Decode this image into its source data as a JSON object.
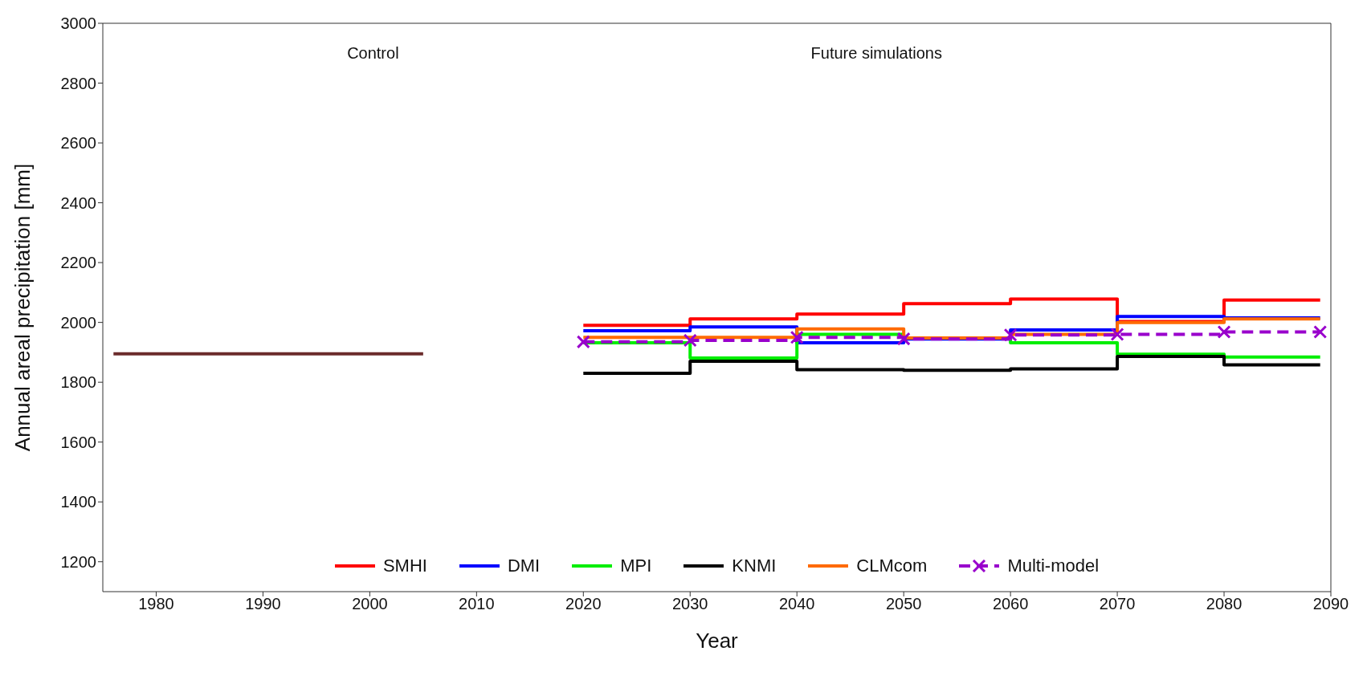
{
  "chart_data": {
    "type": "step",
    "xlabel": "Year",
    "ylabel": "Annual areal precipitation [mm]",
    "xlim": [
      1975,
      2090
    ],
    "xticks": [
      1980,
      1990,
      2000,
      2010,
      2020,
      2030,
      2040,
      2050,
      2060,
      2070,
      2080,
      2090
    ],
    "ylim": [
      1100,
      3000
    ],
    "yticks": [
      1200,
      1400,
      1600,
      1800,
      2000,
      2200,
      2400,
      2600,
      2800,
      3000
    ],
    "legend": "bottom",
    "line_style": "solid",
    "marker": "none",
    "annotations": [
      "Control",
      "Future simulations"
    ],
    "series": [
      {
        "color": "#6b2b2b",
        "x": [
          1976,
          2005
        ],
        "values": [
          1895,
          1895
        ]
      },
      {
        "name": "SMHI",
        "color": "#ff0000",
        "x": [
          2020,
          2030,
          2040,
          2050,
          2060,
          2070,
          2080,
          2089
        ],
        "values": [
          1990,
          2012,
          2028,
          2063,
          2078,
          2003,
          2075,
          2075
        ]
      },
      {
        "name": "DMI",
        "color": "#0000ff",
        "x": [
          2020,
          2030,
          2040,
          2050,
          2060,
          2070,
          2080,
          2089
        ],
        "values": [
          1972,
          1985,
          1932,
          1945,
          1975,
          2020,
          2015,
          2015
        ]
      },
      {
        "name": "MPI",
        "color": "#00ee00",
        "x": [
          2020,
          2030,
          2040,
          2050,
          2060,
          2070,
          2080,
          2089
        ],
        "values": [
          1932,
          1881,
          1960,
          1948,
          1932,
          1894,
          1884,
          1884
        ]
      },
      {
        "name": "KNMI",
        "color": "#000000",
        "x": [
          2020,
          2030,
          2040,
          2050,
          2060,
          2070,
          2080,
          2089
        ],
        "values": [
          1830,
          1870,
          1842,
          1840,
          1845,
          1886,
          1858,
          1858
        ]
      },
      {
        "name": "CLMcom",
        "color": "#ff6a00",
        "x": [
          2020,
          2030,
          2040,
          2050,
          2060,
          2070,
          2080,
          2089
        ],
        "values": [
          1950,
          1950,
          1978,
          1948,
          1960,
          2000,
          2012,
          2012
        ]
      },
      {
        "name": "Multi-model",
        "color": "#9900cc",
        "marker": "cross",
        "line_style": "dashed",
        "x": [
          2020,
          2030,
          2040,
          2050,
          2060,
          2070,
          2080,
          2089
        ],
        "values": [
          1935,
          1940,
          1950,
          1945,
          1958,
          1960,
          1968,
          1968
        ]
      }
    ]
  }
}
